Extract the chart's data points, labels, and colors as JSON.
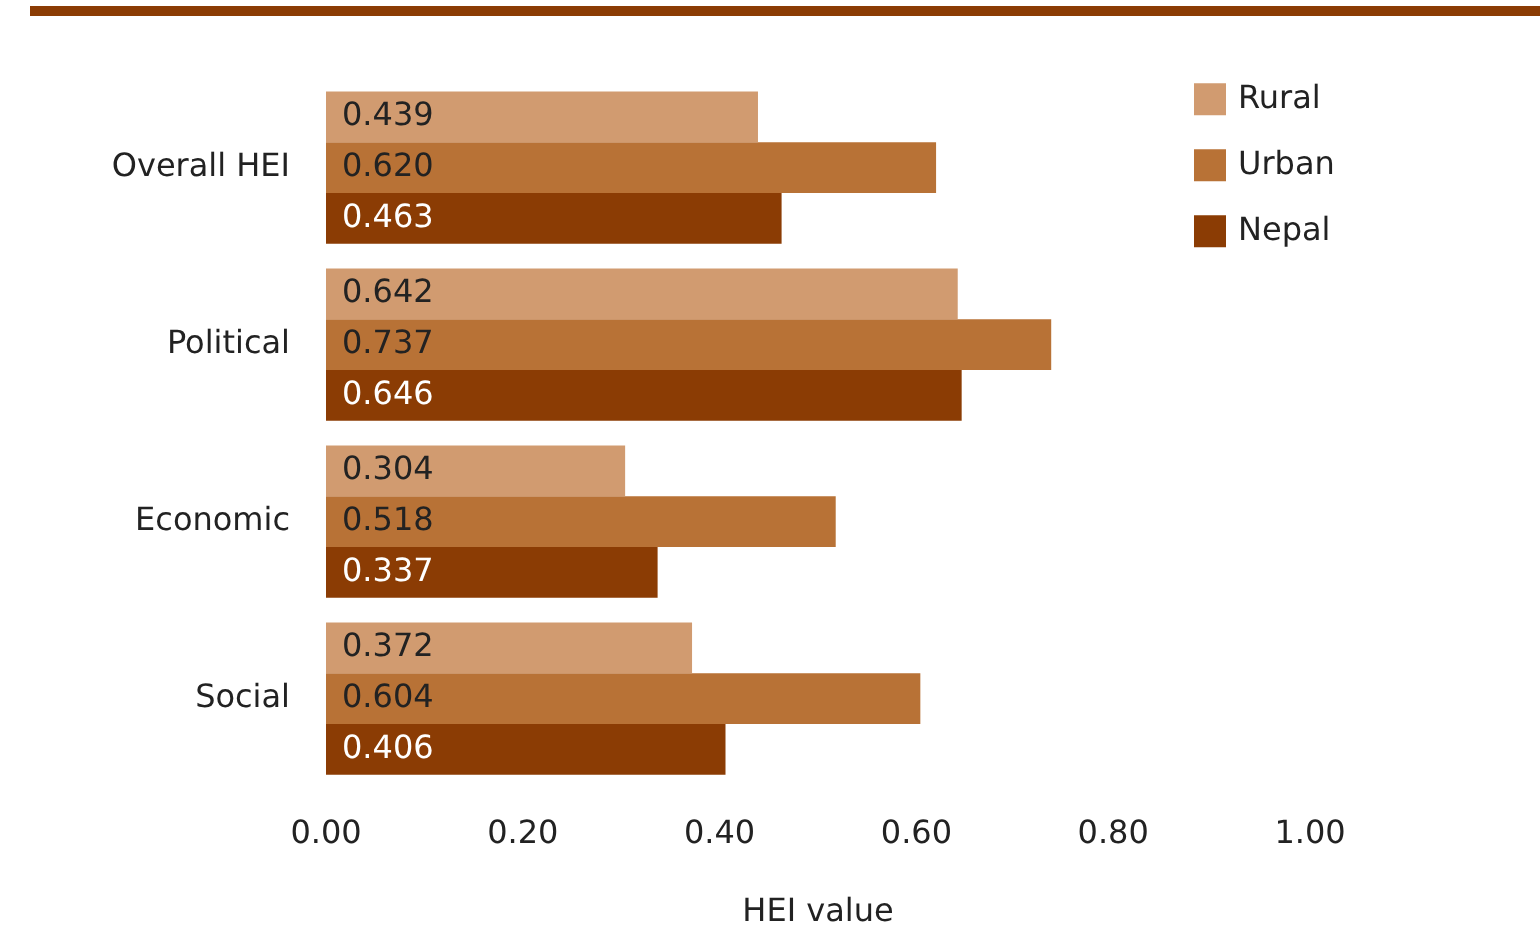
{
  "chart_data": {
    "type": "bar",
    "orientation": "horizontal",
    "categories": [
      "Overall HEI",
      "Political",
      "Economic",
      "Social"
    ],
    "series": [
      {
        "name": "Rural",
        "color": "#d19b70",
        "values": [
          0.439,
          0.642,
          0.304,
          0.372
        ],
        "value_labels": [
          "0.439",
          "0.642",
          "0.304",
          "0.372"
        ]
      },
      {
        "name": "Urban",
        "color": "#b87236",
        "values": [
          0.62,
          0.737,
          0.518,
          0.604
        ],
        "value_labels": [
          "0.620",
          "0.737",
          "0.518",
          "0.604"
        ]
      },
      {
        "name": "Nepal",
        "color": "#8b3c04",
        "values": [
          0.463,
          0.646,
          0.337,
          0.406
        ],
        "value_labels": [
          "0.463",
          "0.646",
          "0.337",
          "0.406"
        ]
      }
    ],
    "xlabel": "HEI value",
    "xlim": [
      0,
      1
    ],
    "xticks": [
      {
        "value": 0,
        "label": "0.00"
      },
      {
        "value": 0.2,
        "label": "0.20"
      },
      {
        "value": 0.4,
        "label": "0.40"
      },
      {
        "value": 0.6,
        "label": "0.60"
      },
      {
        "value": 0.8,
        "label": "0.80"
      },
      {
        "value": 1,
        "label": "1.00"
      }
    ],
    "grid": false,
    "legend": "top right"
  }
}
